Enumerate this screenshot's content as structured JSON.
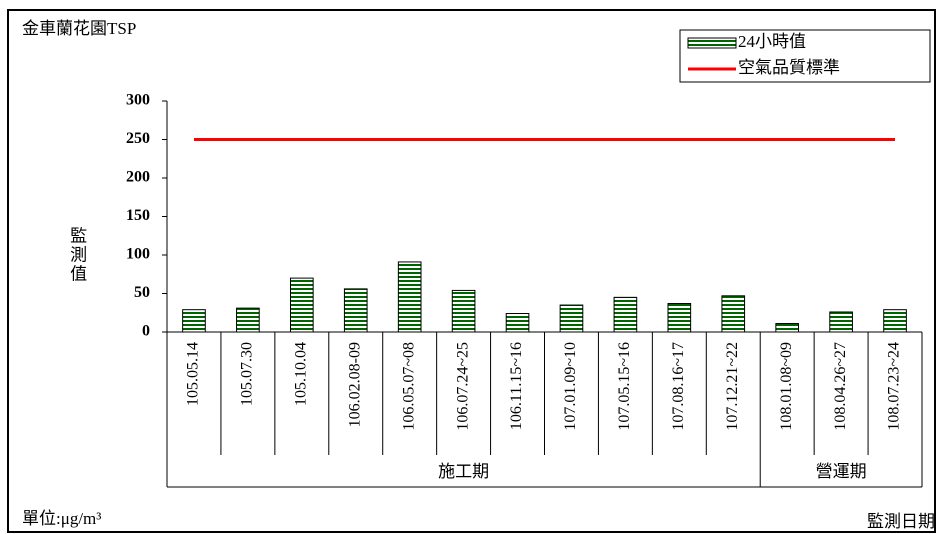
{
  "chart_data": {
    "type": "bar",
    "title": "金車蘭花園TSP",
    "y_label": "監測值",
    "x_label": "監測日期",
    "unit": "單位:μg/m³",
    "categories": [
      "105.05.14",
      "105.07.30",
      "105.10.04",
      "106.02.08-09",
      "106.05.07~08",
      "106.07.24~25",
      "106.11.15~16",
      "107.01.09~10",
      "107.05.15~16",
      "107.08.16~17",
      "107.12.21~22",
      "108.01.08~09",
      "108.04.26~27",
      "108.07.23~24"
    ],
    "groups": [
      {
        "label": "施工期",
        "count": 11
      },
      {
        "label": "營運期",
        "count": 3
      }
    ],
    "series": [
      {
        "name": "24小時值",
        "type": "bar",
        "color": "#006400",
        "values": [
          29,
          31,
          70,
          56,
          91,
          54,
          24,
          35,
          45,
          37,
          47,
          11,
          26,
          29
        ]
      },
      {
        "name": "空氣品質標準",
        "type": "line",
        "color": "#ff0000",
        "values": [
          250,
          250,
          250,
          250,
          250,
          250,
          250,
          250,
          250,
          250,
          250,
          250,
          250,
          250
        ]
      }
    ],
    "ylim": [
      0,
      300
    ],
    "yticks": [
      0,
      50,
      100,
      150,
      200,
      250,
      300
    ],
    "legend": "top-right"
  }
}
